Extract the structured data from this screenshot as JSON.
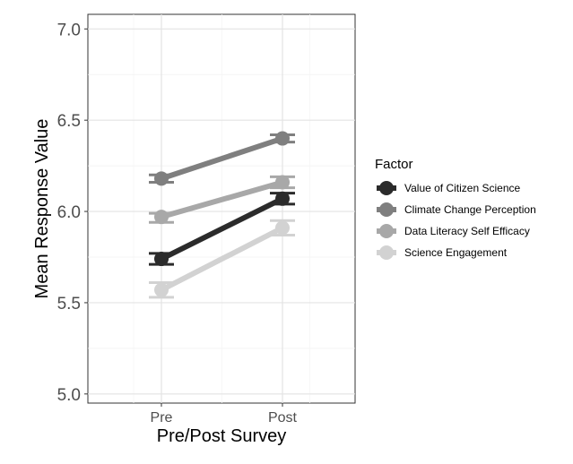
{
  "chart_data": {
    "type": "line",
    "xlabel": "Pre/Post Survey",
    "ylabel": "Mean Response Value",
    "categories": [
      "Pre",
      "Post"
    ],
    "ylim": [
      4.95,
      7.08
    ],
    "yticks": [
      5.0,
      5.5,
      6.0,
      6.5,
      7.0
    ],
    "ytick_labels": [
      "5.0",
      "5.5",
      "6.0",
      "6.5",
      "7.0"
    ],
    "grid": true,
    "legend": {
      "title": "Factor",
      "position": "right"
    },
    "series": [
      {
        "name": "Value of Citizen Science",
        "color": "#2b2b2b",
        "values": [
          5.74,
          6.07
        ],
        "ci_low": [
          5.71,
          6.04
        ],
        "ci_high": [
          5.77,
          6.1
        ]
      },
      {
        "name": "Climate Change Perception",
        "color": "#7f7f7f",
        "values": [
          6.18,
          6.4
        ],
        "ci_low": [
          6.16,
          6.38
        ],
        "ci_high": [
          6.2,
          6.42
        ]
      },
      {
        "name": "Data Literacy Self Efficacy",
        "color": "#a8a8a8",
        "values": [
          5.97,
          6.16
        ],
        "ci_low": [
          5.94,
          6.13
        ],
        "ci_high": [
          5.99,
          6.19
        ]
      },
      {
        "name": "Science Engagement",
        "color": "#d2d2d2",
        "values": [
          5.57,
          5.91
        ],
        "ci_low": [
          5.53,
          5.87
        ],
        "ci_high": [
          5.61,
          5.95
        ]
      }
    ]
  }
}
